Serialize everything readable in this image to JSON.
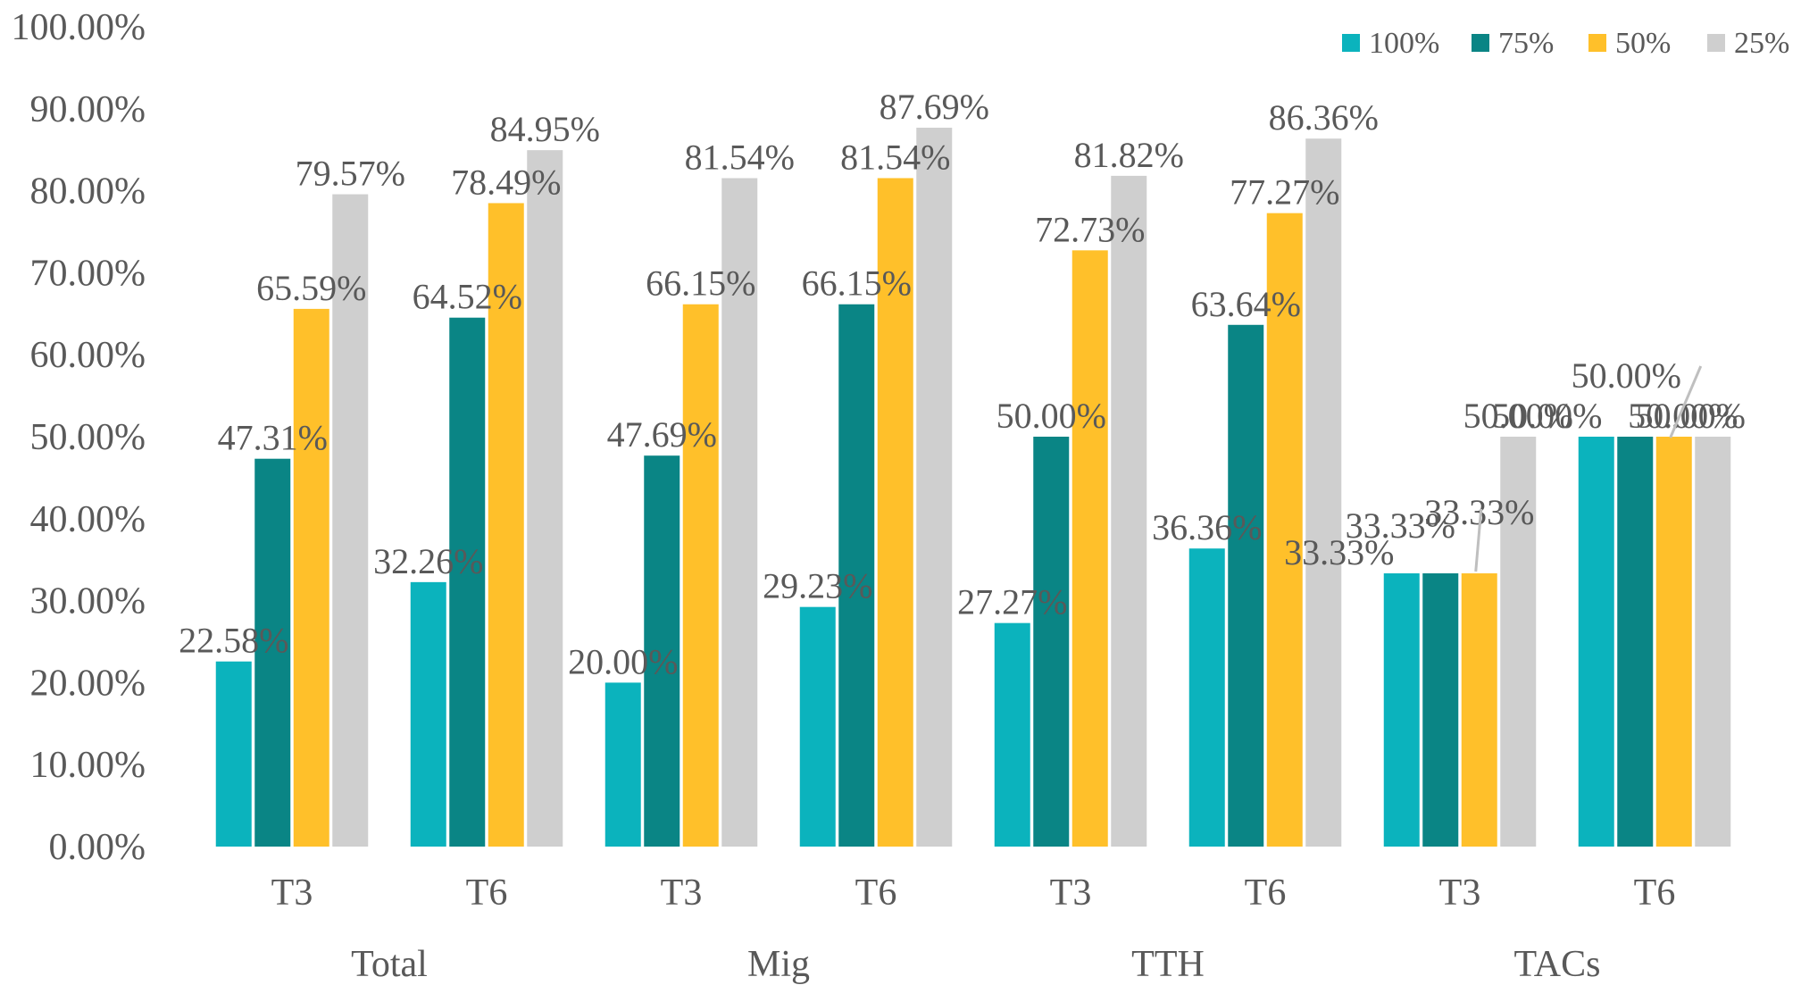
{
  "chart_data": {
    "type": "bar",
    "groups": [
      {
        "label": "Total",
        "categories": [
          "T3",
          "T6"
        ]
      },
      {
        "label": "Mig",
        "categories": [
          "T3",
          "T6"
        ]
      },
      {
        "label": "TTH",
        "categories": [
          "T3",
          "T6"
        ]
      },
      {
        "label": "TACs",
        "categories": [
          "T3",
          "T6"
        ]
      }
    ],
    "categories": [
      "T3",
      "T6",
      "T3",
      "T6",
      "T3",
      "T6",
      "T3",
      "T6"
    ],
    "series": [
      {
        "name": "100%",
        "color": "#0bb3bd",
        "values": [
          22.58,
          32.26,
          20.0,
          29.23,
          27.27,
          36.36,
          33.33,
          50.0
        ],
        "labels": [
          "22.58%",
          "32.26%",
          "20.00%",
          "29.23%",
          "27.27%",
          "36.36%",
          "33.33%",
          "50.00%"
        ]
      },
      {
        "name": "75%",
        "color": "#0a8585",
        "values": [
          47.31,
          64.52,
          47.69,
          66.15,
          50.0,
          63.64,
          33.33,
          50.0
        ],
        "labels": [
          "47.31%",
          "64.52%",
          "47.69%",
          "66.15%",
          "50.00%",
          "63.64%",
          "33.33%",
          "50.00%"
        ]
      },
      {
        "name": "50%",
        "color": "#ffc02a",
        "values": [
          65.59,
          78.49,
          66.15,
          81.54,
          72.73,
          77.27,
          33.33,
          50.0
        ],
        "labels": [
          "65.59%",
          "78.49%",
          "66.15%",
          "81.54%",
          "72.73%",
          "77.27%",
          "33.33%",
          "50.00%"
        ]
      },
      {
        "name": "25%",
        "color": "#cfcfcf",
        "values": [
          79.57,
          84.95,
          81.54,
          87.69,
          81.82,
          86.36,
          50.0,
          50.0
        ],
        "labels": [
          "79.57%",
          "84.95%",
          "81.54%",
          "87.69%",
          "81.82%",
          "86.36%",
          "50.00%",
          "50.00%"
        ]
      }
    ],
    "yticks": [
      "0.00%",
      "10.00%",
      "20.00%",
      "30.00%",
      "40.00%",
      "50.00%",
      "60.00%",
      "70.00%",
      "80.00%",
      "90.00%",
      "100.00%"
    ],
    "ylim": [
      0,
      100
    ],
    "legend_position": "top-right",
    "grid": false
  }
}
